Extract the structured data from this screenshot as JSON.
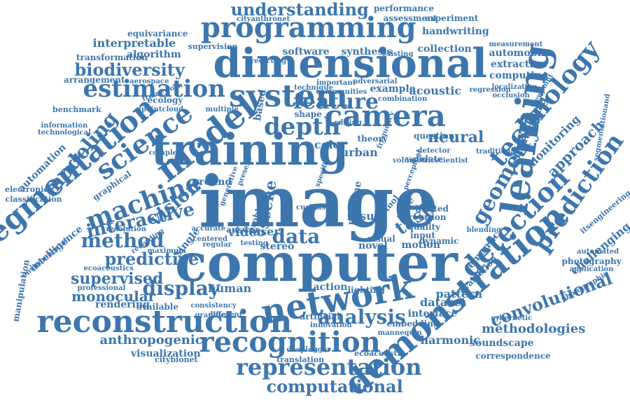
{
  "colors": {
    "word": "#3d76ad",
    "background": "#ffffff"
  },
  "words": [
    "image",
    "computer",
    "training",
    "dimensional",
    "programming",
    "network",
    "learning",
    "demonstration",
    "system",
    "camera",
    "model",
    "segmentation",
    "reconstruction",
    "recognition",
    "representation",
    "estimation",
    "science",
    "technology",
    "detection",
    "prediction",
    "analysis",
    "depth",
    "feature",
    "machine",
    "geometry",
    "computational",
    "understanding",
    "method",
    "display",
    "convolutional",
    "modeling",
    "interactive",
    "vision",
    "biodiversity",
    "predictive",
    "data",
    "task",
    "approach",
    "neural",
    "scene",
    "monocular",
    "supervised",
    "methodologies",
    "anthropogenic",
    "challenging",
    "matching",
    "monitoring",
    "human",
    "pattern",
    "dataset",
    "harmonic",
    "soundscape",
    "visualization",
    "performance",
    "assessment",
    "experiment",
    "handwriting",
    "interpretable",
    "equivariance",
    "algorithm",
    "software",
    "synthesis",
    "collection",
    "automobile",
    "extraction",
    "computing",
    "acoustic",
    "example",
    "transformation",
    "supervision",
    "arrangement",
    "aerospace",
    "benchmark",
    "information",
    "technological",
    "automation",
    "electronic",
    "classification",
    "intelligence",
    "rendering",
    "available",
    "graphical",
    "recording",
    "resolution",
    "consistency",
    "graphic",
    "different",
    "artificial",
    "innovation",
    "embedding",
    "correspondence",
    "translation",
    "ecoacoustic",
    "citybionet",
    "cityanthronet",
    "photography",
    "application",
    "automated",
    "photographic",
    "itsengineering",
    "segmentationand",
    "viewpoint",
    "localization",
    "occlusion",
    "measurement",
    "video",
    "user",
    "color",
    "urban",
    "ground",
    "single",
    "action",
    "lighting",
    "interface",
    "evaluation",
    "semantic",
    "dynamic",
    "blending",
    "motion",
    "visual",
    "stereo",
    "result",
    "limited",
    "rotation",
    "quality",
    "input",
    "tool",
    "time",
    "answer",
    "manipulation",
    "framework",
    "ecology",
    "pointcloud",
    "environmental",
    "professional",
    "ecoacoustics",
    "mannequin",
    "deeplogger",
    "cybernetic",
    "traditional",
    "regression",
    "adversarial",
    "predicting",
    "important",
    "technique",
    "communities",
    "based",
    "multiple",
    "shape",
    "theory",
    "question",
    "validate",
    "novel",
    "pipeline",
    "problem",
    "accurate",
    "centered",
    "maximum",
    "regular",
    "testing",
    "curious",
    "generative",
    "present",
    "specific",
    "complete",
    "detector",
    "scientist",
    "volumetric",
    "perceptual",
    "frequency",
    "editing",
    "existing",
    "combination",
    "practical"
  ]
}
